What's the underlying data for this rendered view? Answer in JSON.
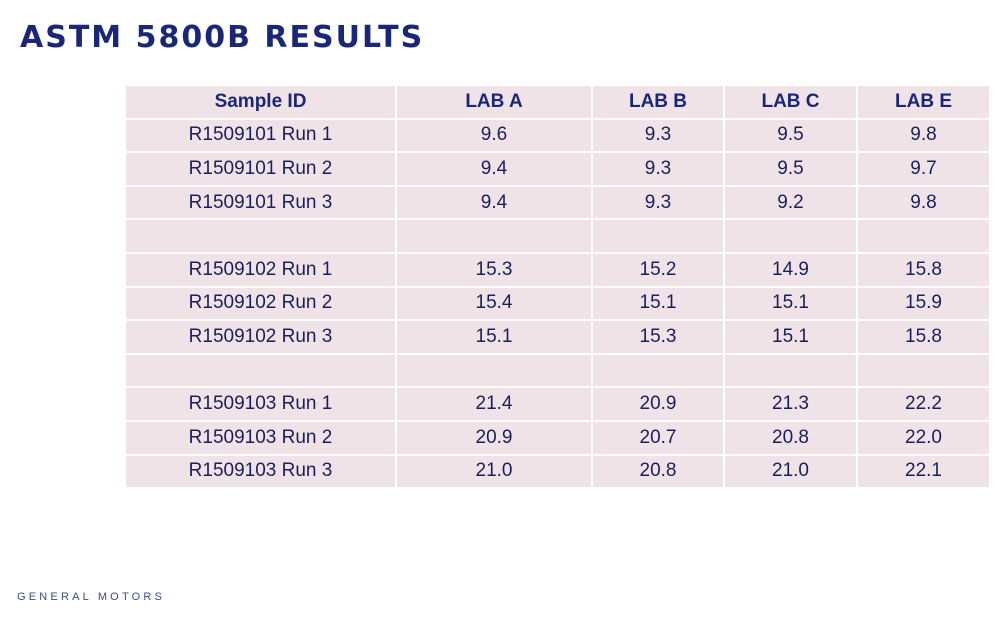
{
  "title": "ASTM 5800B RESULTS",
  "table": {
    "headers": [
      "Sample ID",
      "LAB A",
      "LAB B",
      "LAB C",
      "LAB E"
    ],
    "rows": [
      [
        "R1509101  Run 1",
        "9.6",
        "9.3",
        "9.5",
        "9.8"
      ],
      [
        "R1509101  Run 2",
        "9.4",
        "9.3",
        "9.5",
        "9.7"
      ],
      [
        "R1509101  Run 3",
        "9.4",
        "9.3",
        "9.2",
        "9.8"
      ],
      [
        "",
        "",
        "",
        "",
        ""
      ],
      [
        "R1509102  Run 1",
        "15.3",
        "15.2",
        "14.9",
        "15.8"
      ],
      [
        "R1509102  Run 2",
        "15.4",
        "15.1",
        "15.1",
        "15.9"
      ],
      [
        "R1509102  Run 3",
        "15.1",
        "15.3",
        "15.1",
        "15.8"
      ],
      [
        "",
        "",
        "",
        "",
        ""
      ],
      [
        "R1509103  Run 1",
        "21.4",
        "20.9",
        "21.3",
        "22.2"
      ],
      [
        "R1509103  Run 2",
        "20.9",
        "20.7",
        "20.8",
        "22.0"
      ],
      [
        "R1509103  Run 3",
        "21.0",
        "20.8",
        "21.0",
        "22.1"
      ]
    ]
  },
  "footer": {
    "logo_text": "GENERAL MOTORS"
  },
  "colors": {
    "title": "#1a2778",
    "cell_background": "#efe3e7",
    "cell_text": "#1a1f5c"
  }
}
